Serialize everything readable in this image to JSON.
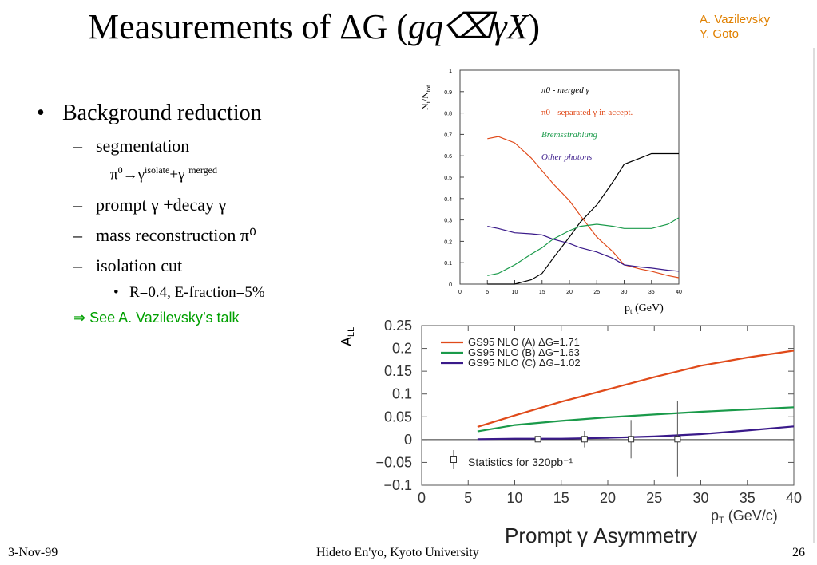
{
  "slide": {
    "title_prefix": "Measurements of ΔG   (",
    "title_formula": "gq⌫γX",
    "title_suffix": ")",
    "authors": [
      "A. Vazilevsky",
      "Y. Goto"
    ],
    "bullet": "Background reduction",
    "sub_items": [
      "segmentation",
      "prompt γ +decay   γ",
      "mass reconstruction π⁰",
      "isolation cut"
    ],
    "segmentation_formula": "π⁰→γisolate+γ merged",
    "formula_parts": {
      "pi": "π",
      "zero": "0",
      "arrow": "→",
      "gamma": "γ",
      "isolate": "isolate",
      "plus_gamma": "+γ",
      "merged": "merged"
    },
    "sub_sub_item": "R=0.4, E-fraction=5%",
    "see_talk": "⇒ See A. Vazilevsky’s  talk"
  },
  "footer": {
    "date": "3-Nov-99",
    "author": "Hideto En'yo, Kyoto University",
    "page": "26"
  },
  "chart_data": [
    {
      "type": "line",
      "ylabel": "Ni/Ntot",
      "xlabel": "pt (GeV)",
      "xlim": [
        0,
        40
      ],
      "ylim": [
        0,
        1
      ],
      "x_ticks": [
        "0",
        "5",
        "10",
        "15",
        "20",
        "25",
        "30",
        "35",
        "40"
      ],
      "y_ticks": [
        "0",
        "0.1",
        "0.2",
        "0.3",
        "0.4",
        "0.5",
        "0.6",
        "0.7",
        "0.8",
        "0.9",
        "1"
      ],
      "legend_placement": "top-right",
      "colors": {
        "merged": "#000000",
        "separated": "#e04a1a",
        "brems": "#1a9a4a",
        "other": "#3a1a8a"
      },
      "series": [
        {
          "name": "π0 - merged γ",
          "x": [
            5,
            7,
            10,
            13,
            15,
            17,
            20,
            22,
            25,
            28,
            30,
            33,
            35,
            38,
            40
          ],
          "y": [
            0.0,
            0.0,
            0.0,
            0.02,
            0.05,
            0.12,
            0.22,
            0.29,
            0.37,
            0.48,
            0.56,
            0.59,
            0.61,
            0.61,
            0.61
          ]
        },
        {
          "name": "π0 - separated γ in accept.",
          "x": [
            5,
            7,
            10,
            13,
            15,
            17,
            20,
            22,
            25,
            28,
            30,
            33,
            35,
            38,
            40
          ],
          "y": [
            0.68,
            0.69,
            0.66,
            0.59,
            0.53,
            0.47,
            0.39,
            0.32,
            0.22,
            0.15,
            0.09,
            0.07,
            0.06,
            0.04,
            0.03
          ]
        },
        {
          "name": "Bremsstrahlung",
          "x": [
            5,
            7,
            10,
            13,
            15,
            17,
            20,
            22,
            25,
            28,
            30,
            33,
            35,
            38,
            40
          ],
          "y": [
            0.04,
            0.05,
            0.09,
            0.14,
            0.17,
            0.21,
            0.25,
            0.27,
            0.28,
            0.27,
            0.26,
            0.26,
            0.26,
            0.28,
            0.31
          ]
        },
        {
          "name": "Other photons",
          "x": [
            5,
            7,
            10,
            13,
            15,
            17,
            20,
            22,
            25,
            28,
            30,
            33,
            35,
            38,
            40
          ],
          "y": [
            0.27,
            0.26,
            0.24,
            0.235,
            0.23,
            0.21,
            0.19,
            0.17,
            0.15,
            0.12,
            0.09,
            0.08,
            0.075,
            0.065,
            0.06
          ]
        }
      ]
    },
    {
      "type": "line",
      "title": "Prompt γ Asymmetry",
      "ylabel": "ALL",
      "xlabel": "pT (GeV/c)",
      "xlim": [
        0,
        40
      ],
      "ylim": [
        -0.1,
        0.25
      ],
      "x_ticks": [
        "0",
        "5",
        "10",
        "15",
        "20",
        "25",
        "30",
        "35",
        "40"
      ],
      "y_ticks": [
        "0.25",
        "0.2",
        "0.15",
        "0.1",
        "0.05",
        "0",
        "−0.05",
        "−0.1"
      ],
      "legend_placement": "top-left",
      "colors": {
        "a": "#e04a1a",
        "b": "#1a9a4a",
        "c": "#3a1a8a"
      },
      "series": [
        {
          "name": "GS95 NLO (A) ΔG=1.71",
          "x": [
            6,
            10,
            15,
            20,
            25,
            30,
            35,
            40
          ],
          "y": [
            0.028,
            0.053,
            0.083,
            0.11,
            0.137,
            0.162,
            0.18,
            0.195
          ]
        },
        {
          "name": "GS95 NLO (B) ΔG=1.63",
          "x": [
            6,
            10,
            15,
            20,
            25,
            30,
            35,
            40
          ],
          "y": [
            0.018,
            0.032,
            0.041,
            0.049,
            0.055,
            0.061,
            0.066,
            0.071
          ]
        },
        {
          "name": "GS95 NLO (C) ΔG=1.02",
          "x": [
            6,
            10,
            15,
            20,
            25,
            30,
            35,
            40
          ],
          "y": [
            0.001,
            0.002,
            0.002,
            0.004,
            0.007,
            0.012,
            0.02,
            0.029
          ]
        }
      ],
      "points": {
        "name": "Statistics for 320pb⁻¹",
        "x": [
          12.5,
          17.5,
          22.5,
          27.5
        ],
        "y": [
          0.001,
          0.001,
          0.001,
          0.001
        ],
        "err": [
          0.002,
          0.018,
          0.042,
          0.083
        ]
      }
    }
  ]
}
